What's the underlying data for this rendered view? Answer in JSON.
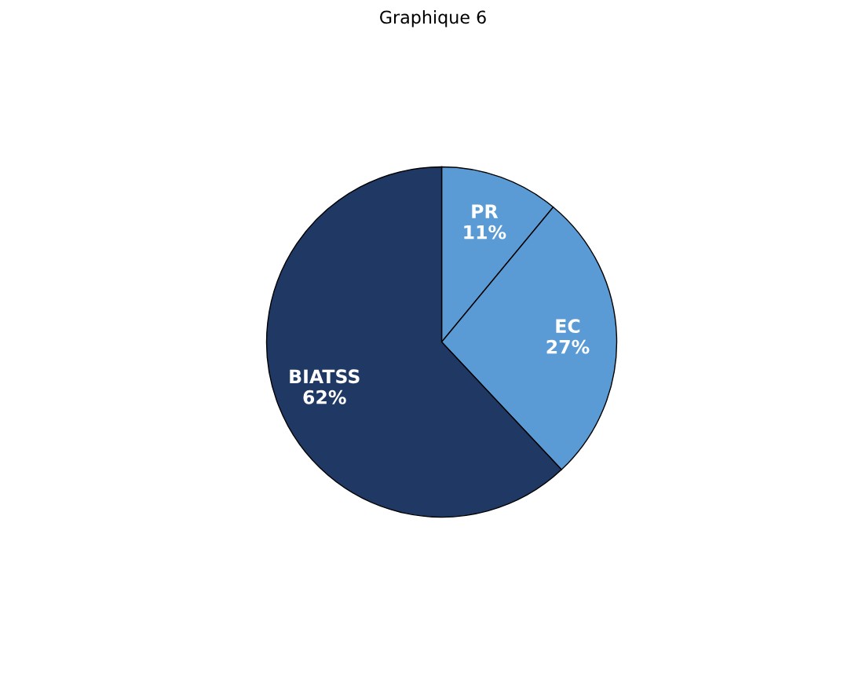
{
  "chart_data": {
    "type": "pie",
    "title": "Graphique 6",
    "categories": [
      "PR",
      "EC",
      "BIATSS"
    ],
    "values": [
      11,
      27,
      62
    ],
    "value_labels": [
      "11%",
      "27%",
      "62%"
    ],
    "colors": [
      "#5b9bd5",
      "#5b9bd5",
      "#1f3864"
    ]
  }
}
